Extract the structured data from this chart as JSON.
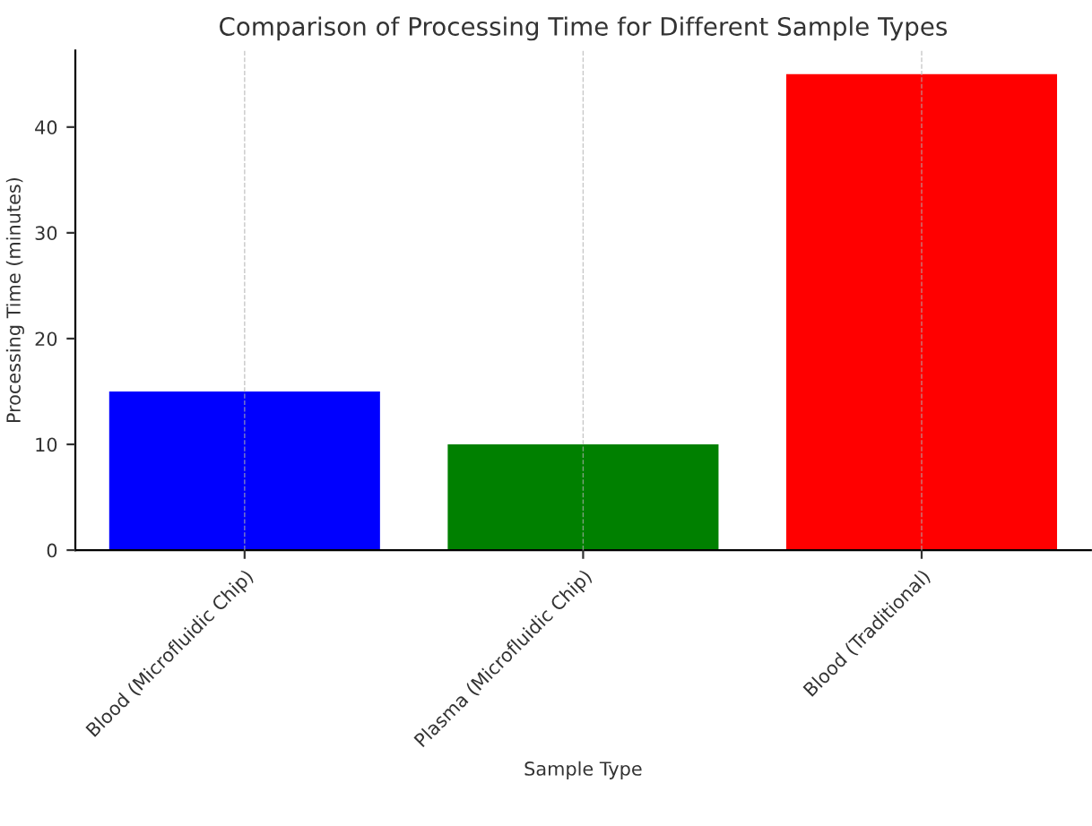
{
  "chart_data": {
    "type": "bar",
    "title": "Comparison of Processing Time for Different Sample Types",
    "xlabel": "Sample Type",
    "ylabel": "Processing Time (minutes)",
    "categories": [
      "Blood (Microfluidic Chip)",
      "Plasma (Microfluidic Chip)",
      "Blood (Traditional)"
    ],
    "values": [
      15,
      10,
      45
    ],
    "colors": [
      "#0000ff",
      "#008000",
      "#ff0000"
    ],
    "ylim": [
      0,
      47.25
    ],
    "yticks": [
      0,
      10,
      20,
      30,
      40
    ],
    "grid": "x"
  }
}
